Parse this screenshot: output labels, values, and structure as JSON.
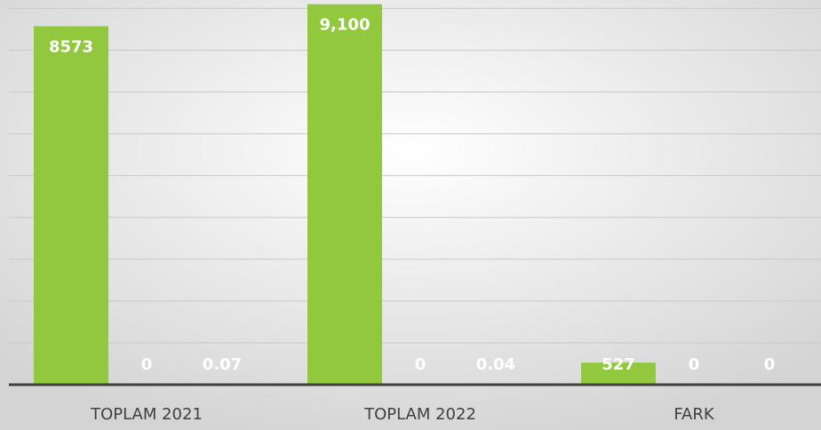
{
  "chart_data": {
    "type": "bar",
    "categories": [
      "TOPLAM 2021",
      "TOPLAM 2022",
      "FARK"
    ],
    "series": [
      {
        "color": "#92c83e",
        "values": [
          8573,
          9100,
          527
        ],
        "value_labels": [
          "8573",
          "9,100",
          "527"
        ]
      },
      {
        "color": "#92c83e",
        "values": [
          0,
          0,
          0
        ]
      },
      {
        "color": "#92c83e",
        "values": [
          0.07,
          0.04,
          0
        ]
      }
    ],
    "ylim": [
      0,
      9200
    ],
    "yticks": [
      0,
      1000,
      2000,
      3000,
      4000,
      5000,
      6000,
      7000,
      8000,
      9000
    ],
    "grid": true
  }
}
